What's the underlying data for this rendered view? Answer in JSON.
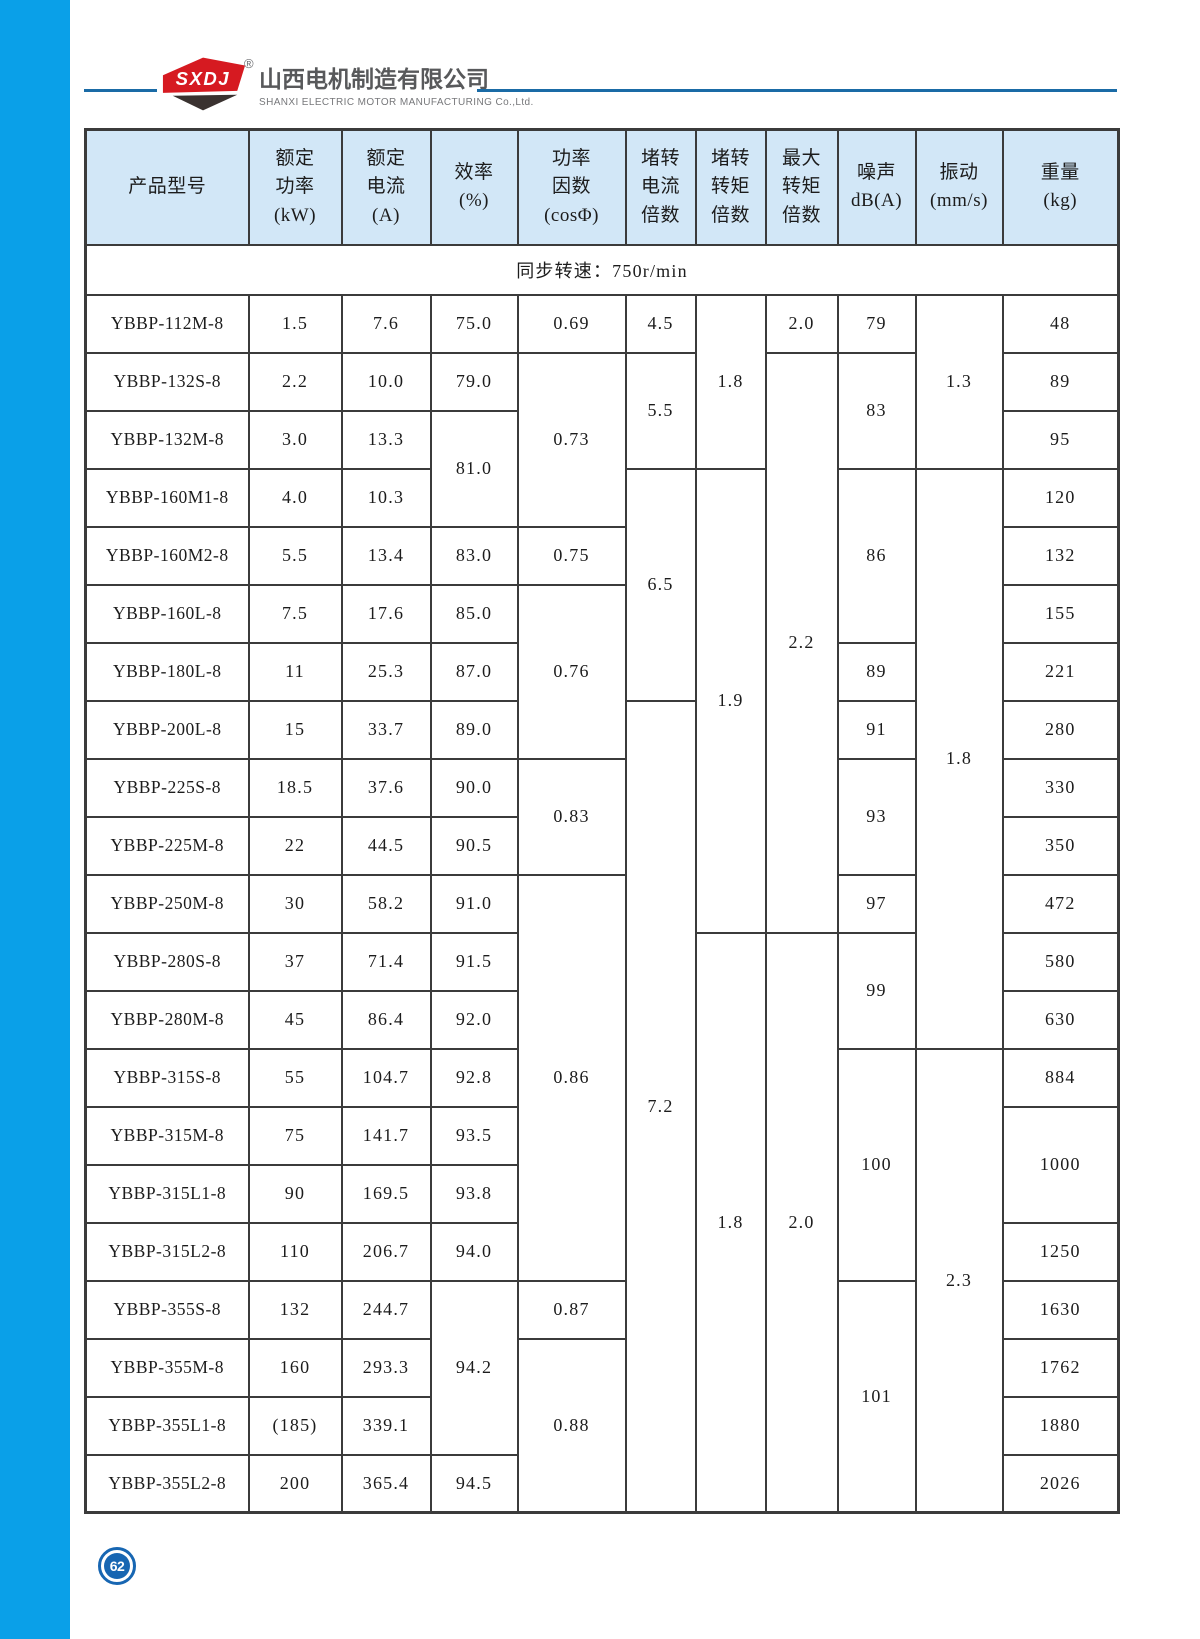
{
  "brand": {
    "logo_text": "SXDJ",
    "registered_mark": "®",
    "company_cn": "山西电机制造有限公司",
    "company_en": "SHANXI ELECTRIC MOTOR MANUFACTURING Co.,Ltd."
  },
  "page": {
    "number": "62"
  },
  "colors": {
    "sidebar_blue": "#0aa0e8",
    "rule_blue": "#1a6ba6",
    "header_fill": "#d2e7f7",
    "table_border": "#3b3b3b",
    "logo_red": "#d61a21",
    "badge_blue": "#1766b2"
  },
  "table": {
    "subtitle": "同步转速：750r/min",
    "headers": [
      "产品型号",
      "额定\n功率\n(kW)",
      "额定\n电流\n(A)",
      "效率\n(%)",
      "功率\n因数\n(cosΦ)",
      "堵转\n电流\n倍数",
      "堵转\n转矩\n倍数",
      "最大\n转矩\n倍数",
      "噪声\ndB(A)",
      "振动\n(mm/s)",
      "重量\n(kg)"
    ],
    "rows": [
      [
        {
          "v": "YBBP-112M-8"
        },
        {
          "v": "1.5"
        },
        {
          "v": "7.6"
        },
        {
          "v": "75.0"
        },
        {
          "v": "0.69"
        },
        {
          "v": "4.5"
        },
        {
          "v": "1.8",
          "rs": 3
        },
        {
          "v": "2.0"
        },
        {
          "v": "79"
        },
        {
          "v": "1.3",
          "rs": 3
        },
        {
          "v": "48"
        }
      ],
      [
        {
          "v": "YBBP-132S-8"
        },
        {
          "v": "2.2"
        },
        {
          "v": "10.0"
        },
        {
          "v": "79.0"
        },
        {
          "v": "0.73",
          "rs": 3
        },
        {
          "v": "5.5",
          "rs": 2
        },
        {
          "v": "2.2",
          "rs": 10
        },
        {
          "v": "83",
          "rs": 2
        },
        {
          "v": "89"
        }
      ],
      [
        {
          "v": "YBBP-132M-8"
        },
        {
          "v": "3.0"
        },
        {
          "v": "13.3"
        },
        {
          "v": "81.0",
          "rs": 2
        },
        {
          "v": "95"
        }
      ],
      [
        {
          "v": "YBBP-160M1-8"
        },
        {
          "v": "4.0"
        },
        {
          "v": "10.3"
        },
        {
          "v": "6.5",
          "rs": 4
        },
        {
          "v": "1.9",
          "rs": 8
        },
        {
          "v": "86",
          "rs": 3
        },
        {
          "v": "1.8",
          "rs": 10
        },
        {
          "v": "120"
        }
      ],
      [
        {
          "v": "YBBP-160M2-8"
        },
        {
          "v": "5.5"
        },
        {
          "v": "13.4"
        },
        {
          "v": "83.0"
        },
        {
          "v": "0.75"
        },
        {
          "v": "132"
        }
      ],
      [
        {
          "v": "YBBP-160L-8"
        },
        {
          "v": "7.5"
        },
        {
          "v": "17.6"
        },
        {
          "v": "85.0"
        },
        {
          "v": "0.76",
          "rs": 3
        },
        {
          "v": "155"
        }
      ],
      [
        {
          "v": "YBBP-180L-8"
        },
        {
          "v": "11"
        },
        {
          "v": "25.3"
        },
        {
          "v": "87.0"
        },
        {
          "v": "89"
        },
        {
          "v": "221"
        }
      ],
      [
        {
          "v": "YBBP-200L-8"
        },
        {
          "v": "15"
        },
        {
          "v": "33.7"
        },
        {
          "v": "89.0"
        },
        {
          "v": "7.2",
          "rs": 14
        },
        {
          "v": "91"
        },
        {
          "v": "280"
        }
      ],
      [
        {
          "v": "YBBP-225S-8"
        },
        {
          "v": "18.5"
        },
        {
          "v": "37.6"
        },
        {
          "v": "90.0"
        },
        {
          "v": "0.83",
          "rs": 2
        },
        {
          "v": "93",
          "rs": 2
        },
        {
          "v": "330"
        }
      ],
      [
        {
          "v": "YBBP-225M-8"
        },
        {
          "v": "22"
        },
        {
          "v": "44.5"
        },
        {
          "v": "90.5"
        },
        {
          "v": "350"
        }
      ],
      [
        {
          "v": "YBBP-250M-8"
        },
        {
          "v": "30"
        },
        {
          "v": "58.2"
        },
        {
          "v": "91.0"
        },
        {
          "v": "0.86",
          "rs": 7
        },
        {
          "v": "97"
        },
        {
          "v": "472"
        }
      ],
      [
        {
          "v": "YBBP-280S-8"
        },
        {
          "v": "37"
        },
        {
          "v": "71.4"
        },
        {
          "v": "91.5"
        },
        {
          "v": "1.8",
          "rs": 10
        },
        {
          "v": "2.0",
          "rs": 10
        },
        {
          "v": "99",
          "rs": 2
        },
        {
          "v": "580"
        }
      ],
      [
        {
          "v": "YBBP-280M-8"
        },
        {
          "v": "45"
        },
        {
          "v": "86.4"
        },
        {
          "v": "92.0"
        },
        {
          "v": "630"
        }
      ],
      [
        {
          "v": "YBBP-315S-8"
        },
        {
          "v": "55"
        },
        {
          "v": "104.7"
        },
        {
          "v": "92.8"
        },
        {
          "v": "100",
          "rs": 4
        },
        {
          "v": "2.3",
          "rs": 8
        },
        {
          "v": "884"
        }
      ],
      [
        {
          "v": "YBBP-315M-8"
        },
        {
          "v": "75"
        },
        {
          "v": "141.7"
        },
        {
          "v": "93.5"
        },
        {
          "v": "1000",
          "rs": 2
        }
      ],
      [
        {
          "v": "YBBP-315L1-8"
        },
        {
          "v": "90"
        },
        {
          "v": "169.5"
        },
        {
          "v": "93.8"
        }
      ],
      [
        {
          "v": "YBBP-315L2-8"
        },
        {
          "v": "110"
        },
        {
          "v": "206.7"
        },
        {
          "v": "94.0"
        },
        {
          "v": "1250"
        }
      ],
      [
        {
          "v": "YBBP-355S-8"
        },
        {
          "v": "132"
        },
        {
          "v": "244.7"
        },
        {
          "v": "94.2",
          "rs": 3
        },
        {
          "v": "0.87"
        },
        {
          "v": "101",
          "rs": 4
        },
        {
          "v": "1630"
        }
      ],
      [
        {
          "v": "YBBP-355M-8"
        },
        {
          "v": "160"
        },
        {
          "v": "293.3"
        },
        {
          "v": "0.88",
          "rs": 3
        },
        {
          "v": "1762"
        }
      ],
      [
        {
          "v": "YBBP-355L1-8"
        },
        {
          "v": "(185)"
        },
        {
          "v": "339.1"
        },
        {
          "v": "1880"
        }
      ],
      [
        {
          "v": "YBBP-355L2-8"
        },
        {
          "v": "200"
        },
        {
          "v": "365.4"
        },
        {
          "v": "94.5"
        },
        {
          "v": "2026"
        }
      ]
    ]
  }
}
